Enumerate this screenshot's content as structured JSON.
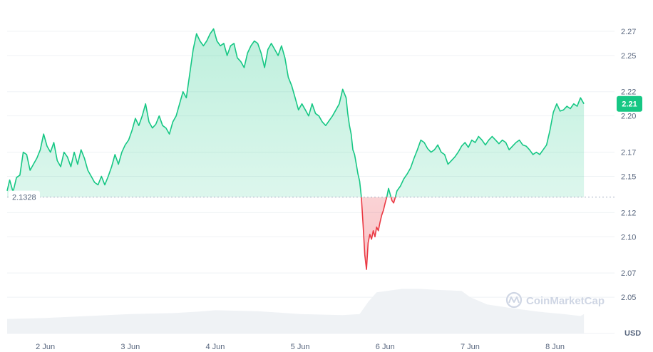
{
  "chart_data": {
    "type": "area",
    "title": "",
    "xlabel": "",
    "ylabel": "",
    "currency_label": "USD",
    "ylim": [
      2.02,
      2.29
    ],
    "y_ticks": [
      "2.27",
      "2.25",
      "2.22",
      "2.20",
      "2.17",
      "2.15",
      "2.12",
      "2.10",
      "2.07",
      "2.05"
    ],
    "y_tick_values": [
      2.27,
      2.25,
      2.22,
      2.2,
      2.17,
      2.15,
      2.12,
      2.1,
      2.07,
      2.05
    ],
    "x_range_days": [
      1.55,
      8.7
    ],
    "x_ticks": [
      {
        "label": "2 Jun",
        "day": 2
      },
      {
        "label": "3 Jun",
        "day": 3
      },
      {
        "label": "4 Jun",
        "day": 4
      },
      {
        "label": "5 Jun",
        "day": 5
      },
      {
        "label": "6 Jun",
        "day": 6
      },
      {
        "label": "7 Jun",
        "day": 7
      },
      {
        "label": "8 Jun",
        "day": 8
      }
    ],
    "baseline": {
      "value": 2.1328,
      "label": "2.1328"
    },
    "current": {
      "value": 2.21,
      "label": "2.21"
    },
    "grid": true,
    "colors": {
      "up": "#16c784",
      "down": "#ea3943",
      "badge": "#16c784",
      "grid": "#eff2f5",
      "volume": "#eff2f5"
    },
    "price_series": [
      [
        1.55,
        2.138
      ],
      [
        1.58,
        2.147
      ],
      [
        1.62,
        2.137
      ],
      [
        1.66,
        2.149
      ],
      [
        1.7,
        2.151
      ],
      [
        1.74,
        2.17
      ],
      [
        1.78,
        2.168
      ],
      [
        1.82,
        2.155
      ],
      [
        1.86,
        2.16
      ],
      [
        1.9,
        2.165
      ],
      [
        1.94,
        2.172
      ],
      [
        1.98,
        2.185
      ],
      [
        2.02,
        2.175
      ],
      [
        2.06,
        2.17
      ],
      [
        2.1,
        2.178
      ],
      [
        2.14,
        2.163
      ],
      [
        2.18,
        2.158
      ],
      [
        2.22,
        2.17
      ],
      [
        2.26,
        2.166
      ],
      [
        2.3,
        2.158
      ],
      [
        2.34,
        2.17
      ],
      [
        2.38,
        2.16
      ],
      [
        2.42,
        2.172
      ],
      [
        2.46,
        2.165
      ],
      [
        2.5,
        2.155
      ],
      [
        2.54,
        2.15
      ],
      [
        2.58,
        2.145
      ],
      [
        2.62,
        2.143
      ],
      [
        2.66,
        2.15
      ],
      [
        2.7,
        2.143
      ],
      [
        2.74,
        2.15
      ],
      [
        2.78,
        2.158
      ],
      [
        2.82,
        2.168
      ],
      [
        2.86,
        2.16
      ],
      [
        2.9,
        2.17
      ],
      [
        2.94,
        2.176
      ],
      [
        2.98,
        2.18
      ],
      [
        3.02,
        2.188
      ],
      [
        3.06,
        2.198
      ],
      [
        3.1,
        2.192
      ],
      [
        3.14,
        2.2
      ],
      [
        3.18,
        2.21
      ],
      [
        3.22,
        2.195
      ],
      [
        3.26,
        2.19
      ],
      [
        3.3,
        2.193
      ],
      [
        3.34,
        2.2
      ],
      [
        3.38,
        2.192
      ],
      [
        3.42,
        2.19
      ],
      [
        3.46,
        2.185
      ],
      [
        3.5,
        2.195
      ],
      [
        3.54,
        2.2
      ],
      [
        3.58,
        2.21
      ],
      [
        3.62,
        2.22
      ],
      [
        3.66,
        2.215
      ],
      [
        3.7,
        2.235
      ],
      [
        3.74,
        2.255
      ],
      [
        3.78,
        2.268
      ],
      [
        3.82,
        2.262
      ],
      [
        3.86,
        2.258
      ],
      [
        3.9,
        2.262
      ],
      [
        3.94,
        2.268
      ],
      [
        3.98,
        2.272
      ],
      [
        4.02,
        2.262
      ],
      [
        4.06,
        2.258
      ],
      [
        4.1,
        2.26
      ],
      [
        4.14,
        2.25
      ],
      [
        4.18,
        2.258
      ],
      [
        4.22,
        2.26
      ],
      [
        4.26,
        2.248
      ],
      [
        4.3,
        2.245
      ],
      [
        4.34,
        2.24
      ],
      [
        4.38,
        2.252
      ],
      [
        4.42,
        2.258
      ],
      [
        4.46,
        2.262
      ],
      [
        4.5,
        2.26
      ],
      [
        4.54,
        2.252
      ],
      [
        4.58,
        2.24
      ],
      [
        4.62,
        2.255
      ],
      [
        4.66,
        2.26
      ],
      [
        4.7,
        2.255
      ],
      [
        4.74,
        2.25
      ],
      [
        4.78,
        2.258
      ],
      [
        4.82,
        2.248
      ],
      [
        4.86,
        2.232
      ],
      [
        4.9,
        2.225
      ],
      [
        4.94,
        2.215
      ],
      [
        4.98,
        2.205
      ],
      [
        5.02,
        2.21
      ],
      [
        5.06,
        2.205
      ],
      [
        5.1,
        2.2
      ],
      [
        5.14,
        2.21
      ],
      [
        5.18,
        2.202
      ],
      [
        5.22,
        2.2
      ],
      [
        5.26,
        2.195
      ],
      [
        5.3,
        2.192
      ],
      [
        5.34,
        2.196
      ],
      [
        5.38,
        2.2
      ],
      [
        5.42,
        2.205
      ],
      [
        5.46,
        2.21
      ],
      [
        5.5,
        2.222
      ],
      [
        5.54,
        2.215
      ],
      [
        5.56,
        2.202
      ],
      [
        5.58,
        2.192
      ],
      [
        5.6,
        2.185
      ],
      [
        5.62,
        2.172
      ],
      [
        5.64,
        2.168
      ],
      [
        5.66,
        2.16
      ],
      [
        5.68,
        2.152
      ],
      [
        5.7,
        2.146
      ],
      [
        5.72,
        2.1328
      ],
      [
        5.74,
        2.11
      ],
      [
        5.76,
        2.085
      ],
      [
        5.78,
        2.073
      ],
      [
        5.8,
        2.095
      ],
      [
        5.82,
        2.102
      ],
      [
        5.84,
        2.098
      ],
      [
        5.86,
        2.105
      ],
      [
        5.88,
        2.1
      ],
      [
        5.9,
        2.108
      ],
      [
        5.92,
        2.105
      ],
      [
        5.94,
        2.112
      ],
      [
        5.96,
        2.118
      ],
      [
        5.98,
        2.122
      ],
      [
        6.0,
        2.128
      ],
      [
        6.02,
        2.1328
      ],
      [
        6.04,
        2.14
      ],
      [
        6.06,
        2.135
      ],
      [
        6.08,
        2.13
      ],
      [
        6.1,
        2.128
      ],
      [
        6.12,
        2.1328
      ],
      [
        6.14,
        2.138
      ],
      [
        6.18,
        2.142
      ],
      [
        6.22,
        2.148
      ],
      [
        6.26,
        2.152
      ],
      [
        6.3,
        2.157
      ],
      [
        6.34,
        2.165
      ],
      [
        6.38,
        2.172
      ],
      [
        6.42,
        2.18
      ],
      [
        6.46,
        2.178
      ],
      [
        6.5,
        2.173
      ],
      [
        6.54,
        2.17
      ],
      [
        6.58,
        2.172
      ],
      [
        6.62,
        2.176
      ],
      [
        6.66,
        2.17
      ],
      [
        6.7,
        2.168
      ],
      [
        6.74,
        2.16
      ],
      [
        6.78,
        2.163
      ],
      [
        6.82,
        2.166
      ],
      [
        6.86,
        2.17
      ],
      [
        6.9,
        2.175
      ],
      [
        6.94,
        2.178
      ],
      [
        6.98,
        2.174
      ],
      [
        7.02,
        2.18
      ],
      [
        7.06,
        2.178
      ],
      [
        7.1,
        2.183
      ],
      [
        7.14,
        2.18
      ],
      [
        7.18,
        2.176
      ],
      [
        7.22,
        2.18
      ],
      [
        7.26,
        2.183
      ],
      [
        7.3,
        2.18
      ],
      [
        7.34,
        2.177
      ],
      [
        7.38,
        2.18
      ],
      [
        7.42,
        2.178
      ],
      [
        7.46,
        2.172
      ],
      [
        7.5,
        2.175
      ],
      [
        7.54,
        2.178
      ],
      [
        7.58,
        2.18
      ],
      [
        7.62,
        2.176
      ],
      [
        7.66,
        2.175
      ],
      [
        7.7,
        2.172
      ],
      [
        7.74,
        2.168
      ],
      [
        7.78,
        2.17
      ],
      [
        7.82,
        2.168
      ],
      [
        7.86,
        2.172
      ],
      [
        7.9,
        2.176
      ],
      [
        7.94,
        2.188
      ],
      [
        7.98,
        2.203
      ],
      [
        8.02,
        2.21
      ],
      [
        8.06,
        2.204
      ],
      [
        8.1,
        2.205
      ],
      [
        8.14,
        2.208
      ],
      [
        8.18,
        2.206
      ],
      [
        8.22,
        2.21
      ],
      [
        8.26,
        2.208
      ],
      [
        8.3,
        2.215
      ],
      [
        8.34,
        2.21
      ]
    ],
    "volume_series": [
      [
        1.55,
        0.3
      ],
      [
        2.0,
        0.32
      ],
      [
        2.5,
        0.36
      ],
      [
        3.0,
        0.4
      ],
      [
        3.5,
        0.42
      ],
      [
        3.8,
        0.45
      ],
      [
        4.0,
        0.48
      ],
      [
        4.5,
        0.46
      ],
      [
        5.0,
        0.4
      ],
      [
        5.5,
        0.38
      ],
      [
        5.7,
        0.4
      ],
      [
        5.8,
        0.65
      ],
      [
        5.9,
        0.85
      ],
      [
        6.2,
        0.92
      ],
      [
        6.4,
        0.92
      ],
      [
        6.6,
        0.9
      ],
      [
        6.9,
        0.88
      ],
      [
        7.0,
        0.75
      ],
      [
        7.2,
        0.6
      ],
      [
        7.5,
        0.52
      ],
      [
        7.8,
        0.45
      ],
      [
        8.1,
        0.4
      ],
      [
        8.3,
        0.36
      ],
      [
        8.34,
        0.4
      ]
    ]
  },
  "watermark": {
    "text": "CoinMarketCap"
  }
}
